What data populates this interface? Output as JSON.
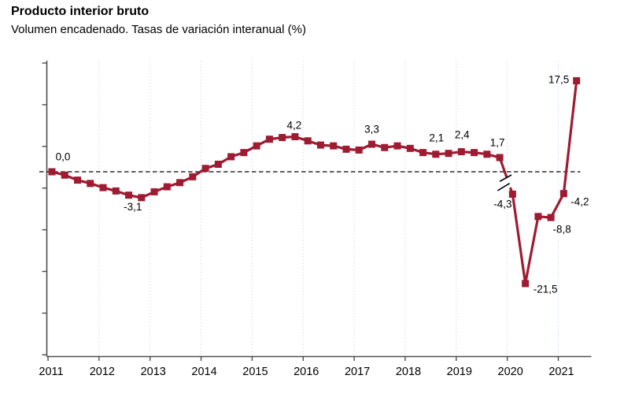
{
  "header": {
    "title": "Producto interior bruto",
    "subtitle": "Volumen encadenado. Tasas de variación interanual (%)"
  },
  "chart_data": {
    "type": "line",
    "title": "Producto interior bruto",
    "subtitle": "Volumen encadenado. Tasas de variación interanual (%)",
    "ylabel": "Tasa de variación interanual (%)",
    "xlabel": "",
    "decimal_separator": ",",
    "legend": "none",
    "grid": "vertical dotted gridlines at each year",
    "line_color": "#9e1b32",
    "gridline_color": "#ccdeeb",
    "axis_color": "#4d4d4d",
    "label_color": "#000000",
    "zero_line": {
      "value": 0,
      "style": "dashed",
      "color": "#000000"
    },
    "axis_break": {
      "between_indices": [
        35,
        36
      ],
      "symbol": "//",
      "note": "escala comprimida para los valores de 2020-2021"
    },
    "x_axis": {
      "tick_labels": [
        "2011",
        "2012",
        "2013",
        "2014",
        "2015",
        "2016",
        "2017",
        "2018",
        "2019",
        "2020",
        "2021"
      ]
    },
    "y_axis": {
      "tick_labels": [],
      "note": "marcas de eje sin etiquetas"
    },
    "x": [
      "2011Q1",
      "2011Q2",
      "2011Q3",
      "2011Q4",
      "2012Q1",
      "2012Q2",
      "2012Q3",
      "2012Q4",
      "2013Q1",
      "2013Q2",
      "2013Q3",
      "2013Q4",
      "2014Q1",
      "2014Q2",
      "2014Q3",
      "2014Q4",
      "2015Q1",
      "2015Q2",
      "2015Q3",
      "2015Q4",
      "2016Q1",
      "2016Q2",
      "2016Q3",
      "2016Q4",
      "2017Q1",
      "2017Q2",
      "2017Q3",
      "2017Q4",
      "2018Q1",
      "2018Q2",
      "2018Q3",
      "2018Q4",
      "2019Q1",
      "2019Q2",
      "2019Q3",
      "2019Q4",
      "2020Q1",
      "2020Q2",
      "2020Q3",
      "2020Q4",
      "2021Q1",
      "2021Q2"
    ],
    "series": [
      {
        "name": "Producto interior bruto",
        "values": [
          0.0,
          -0.4,
          -1.0,
          -1.4,
          -1.9,
          -2.3,
          -2.8,
          -3.1,
          -2.4,
          -1.8,
          -1.3,
          -0.6,
          0.4,
          0.9,
          1.8,
          2.3,
          3.1,
          3.9,
          4.1,
          4.2,
          3.7,
          3.2,
          3.1,
          2.7,
          2.6,
          3.3,
          2.9,
          3.1,
          2.8,
          2.3,
          2.1,
          2.2,
          2.4,
          2.3,
          2.1,
          1.7,
          -4.3,
          -21.5,
          -8.6,
          -8.8,
          -4.2,
          17.5
        ]
      }
    ],
    "point_labels": [
      {
        "index": 0,
        "text": "0,0"
      },
      {
        "index": 7,
        "text": "-3,1"
      },
      {
        "index": 19,
        "text": "4,2"
      },
      {
        "index": 25,
        "text": "3,3"
      },
      {
        "index": 30,
        "text": "2,1"
      },
      {
        "index": 32,
        "text": "2,4"
      },
      {
        "index": 35,
        "text": "1,7"
      },
      {
        "index": 36,
        "text": "-4,3"
      },
      {
        "index": 37,
        "text": "-21,5"
      },
      {
        "index": 39,
        "text": "-8,8"
      },
      {
        "index": 40,
        "text": "-4,2"
      },
      {
        "index": 41,
        "text": "17,5"
      }
    ]
  }
}
